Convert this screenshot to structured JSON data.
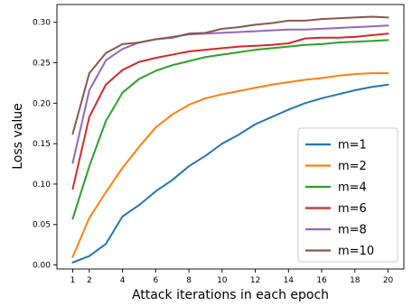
{
  "chart_data": {
    "type": "line",
    "xlabel": "Attack iterations in each epoch",
    "ylabel": "Loss value",
    "x": [
      1,
      2,
      3,
      4,
      5,
      6,
      7,
      8,
      9,
      10,
      11,
      12,
      13,
      14,
      15,
      16,
      17,
      18,
      19,
      20
    ],
    "xticks": [
      1,
      2,
      4,
      6,
      8,
      10,
      12,
      14,
      16,
      18,
      20
    ],
    "xticklabels": [
      "1",
      "2",
      "4",
      "6",
      "8",
      "10",
      "12",
      "14",
      "16",
      "18",
      "20"
    ],
    "ylim": [
      -0.005,
      0.322
    ],
    "yticks": [
      0.0,
      0.05,
      0.1,
      0.15,
      0.2,
      0.25,
      0.3
    ],
    "yticklabels": [
      "0.00",
      "0.05",
      "0.10",
      "0.15",
      "0.20",
      "0.25",
      "0.30"
    ],
    "grid": false,
    "legend_position": "lower-right",
    "series": [
      {
        "name": "m=1",
        "color": "#1f77b4",
        "values": [
          0.003,
          0.011,
          0.026,
          0.06,
          0.074,
          0.091,
          0.105,
          0.122,
          0.135,
          0.15,
          0.161,
          0.174,
          0.183,
          0.192,
          0.2,
          0.206,
          0.211,
          0.216,
          0.22,
          0.223
        ]
      },
      {
        "name": "m=2",
        "color": "#ff7f0e",
        "values": [
          0.01,
          0.058,
          0.09,
          0.12,
          0.146,
          0.17,
          0.186,
          0.198,
          0.206,
          0.211,
          0.215,
          0.219,
          0.223,
          0.226,
          0.229,
          0.231,
          0.234,
          0.236,
          0.237,
          0.237
        ]
      },
      {
        "name": "m=4",
        "color": "#2ca02c",
        "values": [
          0.057,
          0.122,
          0.178,
          0.213,
          0.23,
          0.24,
          0.247,
          0.252,
          0.257,
          0.26,
          0.263,
          0.266,
          0.268,
          0.27,
          0.272,
          0.273,
          0.275,
          0.276,
          0.277,
          0.278
        ]
      },
      {
        "name": "m=6",
        "color": "#d62728",
        "values": [
          0.094,
          0.183,
          0.223,
          0.241,
          0.251,
          0.256,
          0.26,
          0.264,
          0.266,
          0.268,
          0.27,
          0.271,
          0.272,
          0.274,
          0.28,
          0.281,
          0.281,
          0.282,
          0.284,
          0.286
        ]
      },
      {
        "name": "m=8",
        "color": "#9467bd",
        "values": [
          0.126,
          0.216,
          0.253,
          0.267,
          0.275,
          0.279,
          0.282,
          0.285,
          0.286,
          0.287,
          0.288,
          0.289,
          0.29,
          0.291,
          0.291,
          0.292,
          0.293,
          0.294,
          0.295,
          0.296
        ]
      },
      {
        "name": "m=10",
        "color": "#8c564b",
        "values": [
          0.162,
          0.237,
          0.262,
          0.273,
          0.275,
          0.279,
          0.281,
          0.286,
          0.287,
          0.292,
          0.294,
          0.297,
          0.299,
          0.302,
          0.302,
          0.304,
          0.305,
          0.306,
          0.307,
          0.306
        ]
      }
    ]
  }
}
